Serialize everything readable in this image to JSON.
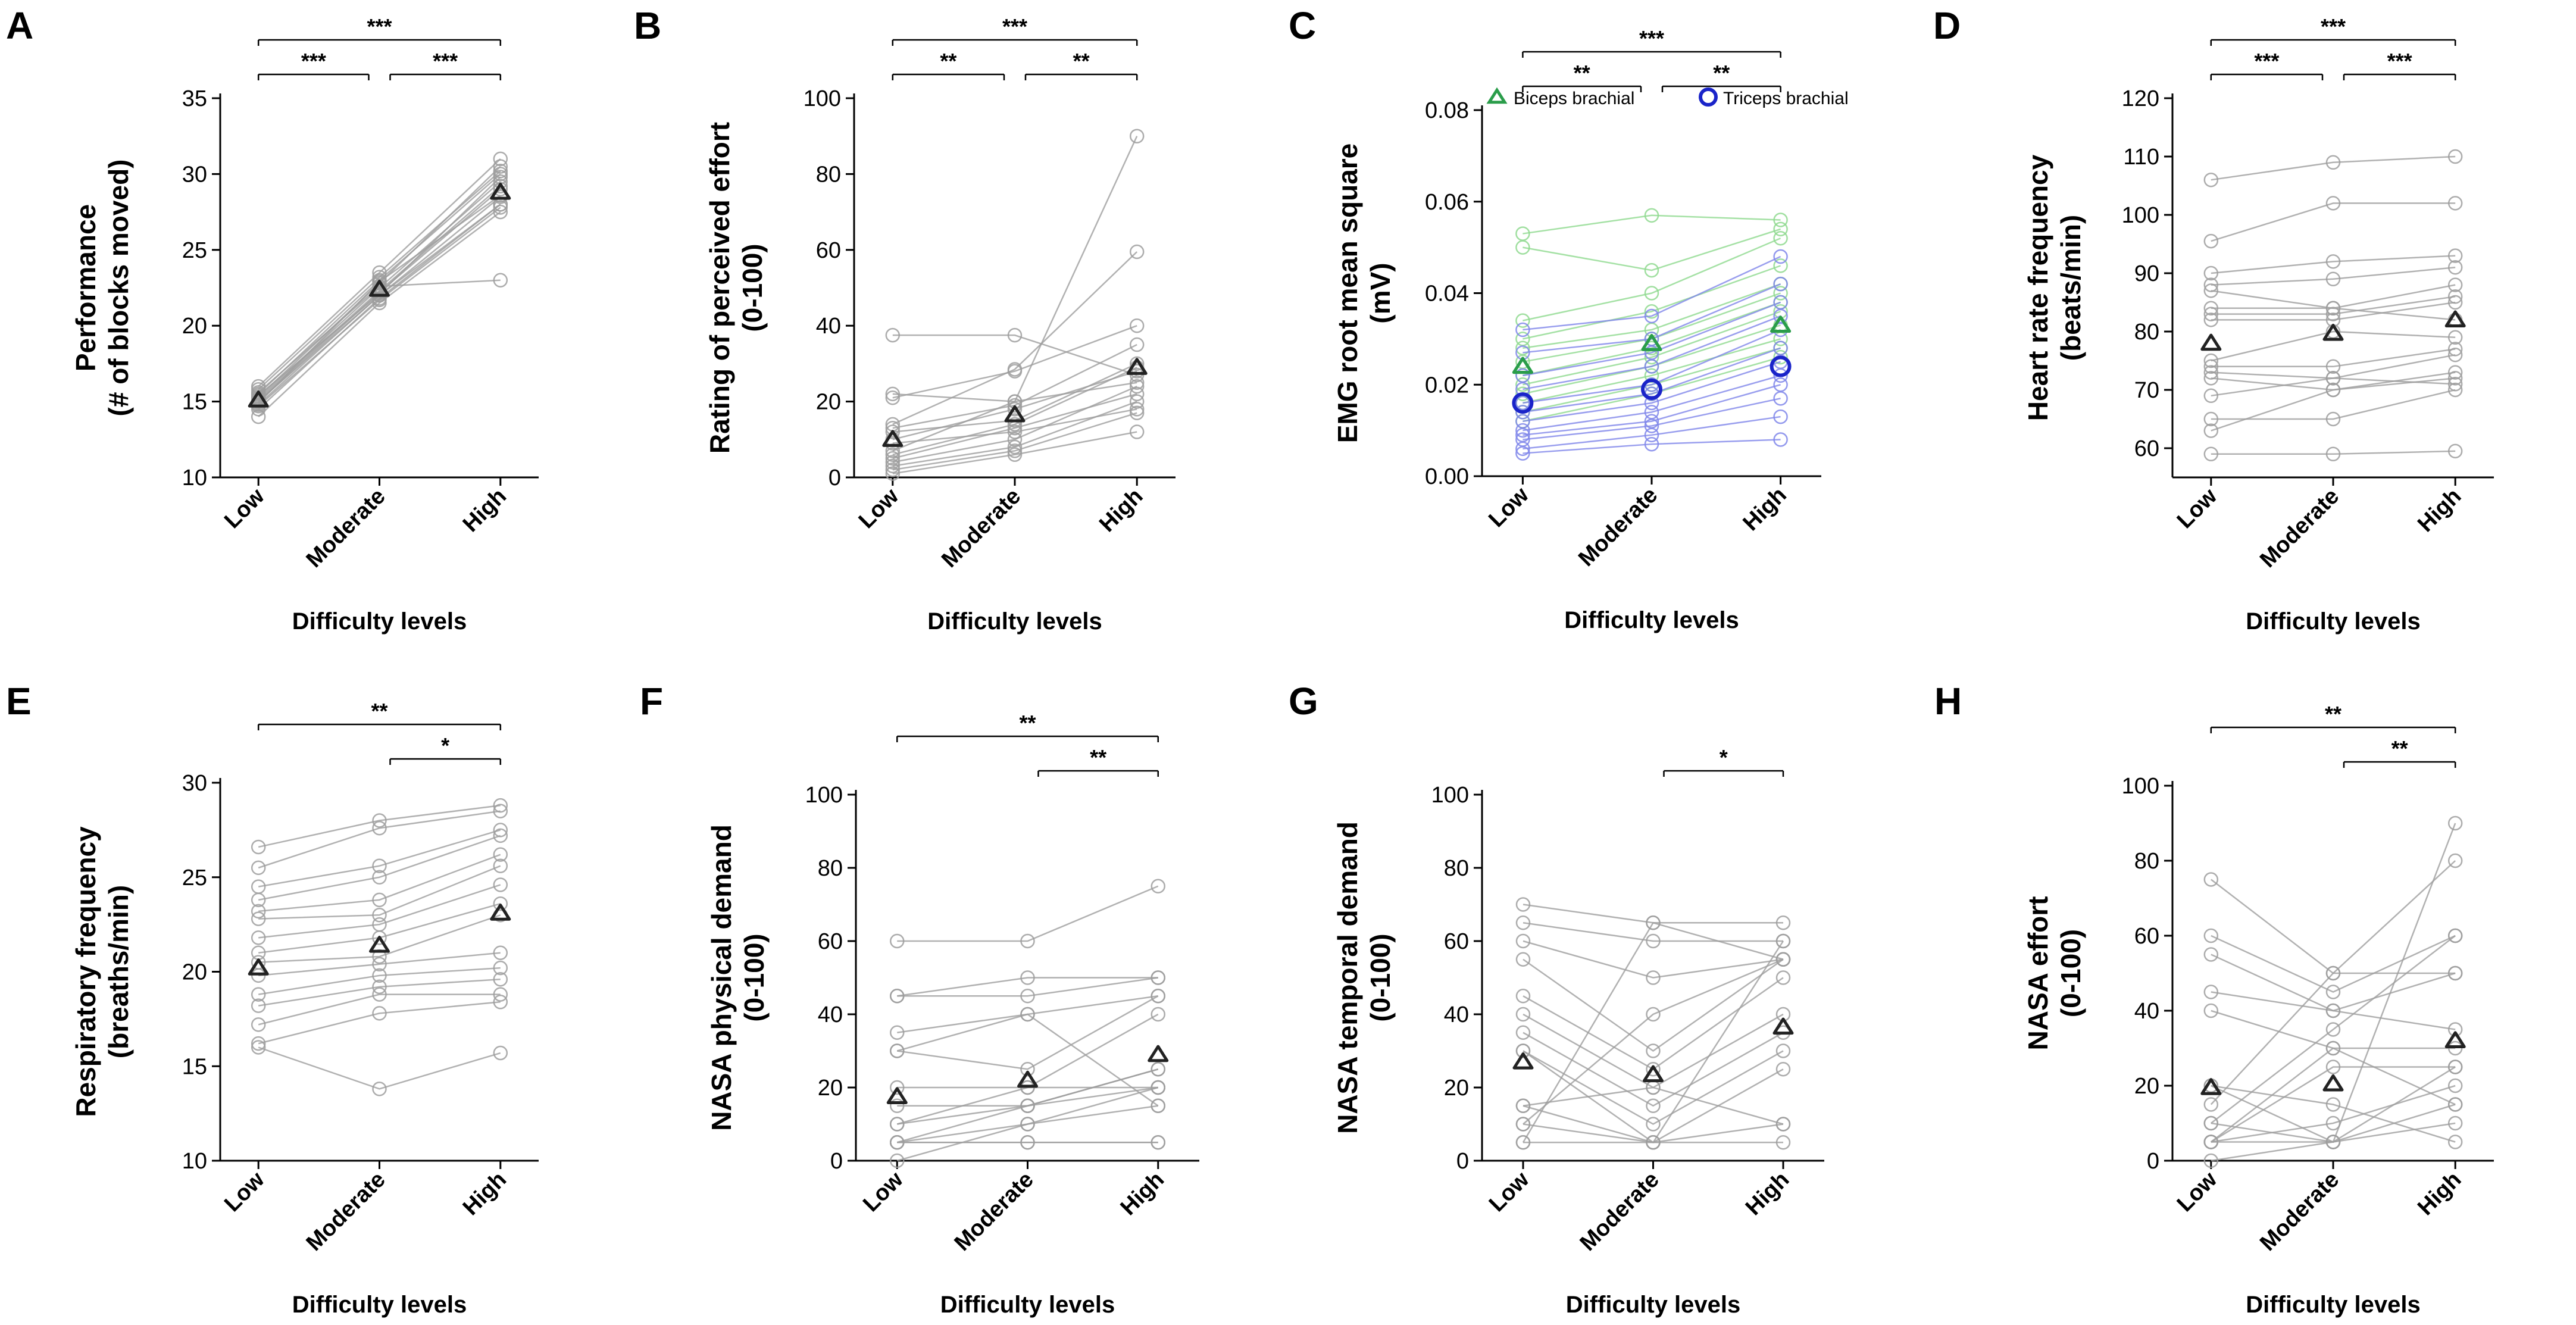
{
  "figure": {
    "colors": {
      "individual": "#9e9e9e",
      "mean_marker": "#222222",
      "biceps": "#2a9d4a",
      "biceps_light": "#8fd98f",
      "triceps": "#1a24c9",
      "triceps_light": "#7f86ea"
    }
  },
  "chart_data": [
    {
      "panel": "A",
      "type": "line",
      "ylabel": "Performance",
      "ylabel2": "(# of blocks moved)",
      "xlabel": "Difficulty levels",
      "categories": [
        "Low",
        "Moderate",
        "High"
      ],
      "ylim": [
        10,
        35
      ],
      "yticks": [
        "10",
        "15",
        "20",
        "25",
        "30",
        "35"
      ],
      "mean": [
        15.1,
        22.4,
        28.8
      ],
      "subjects": [
        [
          14.0,
          21.5,
          27.5
        ],
        [
          14.5,
          21.8,
          28.0
        ],
        [
          14.8,
          22.0,
          28.5
        ],
        [
          15.0,
          22.2,
          29.0
        ],
        [
          15.2,
          22.5,
          29.5
        ],
        [
          15.5,
          23.0,
          30.0
        ],
        [
          16.0,
          23.5,
          31.0
        ],
        [
          15.0,
          22.0,
          28.0
        ],
        [
          15.3,
          22.8,
          30.5
        ],
        [
          14.7,
          21.7,
          27.8
        ],
        [
          15.6,
          22.6,
          23.0
        ],
        [
          15.1,
          22.3,
          29.2
        ],
        [
          14.9,
          22.9,
          28.6
        ],
        [
          15.8,
          23.2,
          30.2
        ],
        [
          15.4,
          22.1,
          29.8
        ]
      ],
      "comparisons": [
        {
          "from": 0,
          "to": 1,
          "stars": "***",
          "level": 0
        },
        {
          "from": 1,
          "to": 2,
          "stars": "***",
          "level": 0
        },
        {
          "from": 0,
          "to": 2,
          "stars": "***",
          "level": 1
        }
      ]
    },
    {
      "panel": "B",
      "type": "line",
      "ylabel": "Rating of perceived effort",
      "ylabel2": "(0-100)",
      "xlabel": "Difficulty levels",
      "categories": [
        "Low",
        "Moderate",
        "High"
      ],
      "ylim": [
        0,
        100
      ],
      "yticks": [
        "0",
        "20",
        "40",
        "60",
        "80",
        "100"
      ],
      "mean": [
        10.0,
        16.5,
        29.0
      ],
      "subjects": [
        [
          37.5,
          37.5,
          27.0
        ],
        [
          22.0,
          20.0,
          90.0
        ],
        [
          21.0,
          28.0,
          40.0
        ],
        [
          14.0,
          28.5,
          59.5
        ],
        [
          13.0,
          19.0,
          35.0
        ],
        [
          12.0,
          15.0,
          30.0
        ],
        [
          10.0,
          18.0,
          28.0
        ],
        [
          7.0,
          20.0,
          25.0
        ],
        [
          5.0,
          13.0,
          22.0
        ],
        [
          3.0,
          8.0,
          20.0
        ],
        [
          2.0,
          7.0,
          17.0
        ],
        [
          1.0,
          6.0,
          12.0
        ],
        [
          4.0,
          10.0,
          24.0
        ],
        [
          6.0,
          14.0,
          29.0
        ],
        [
          9.0,
          12.0,
          18.0
        ]
      ],
      "comparisons": [
        {
          "from": 0,
          "to": 1,
          "stars": "**",
          "level": 0
        },
        {
          "from": 1,
          "to": 2,
          "stars": "**",
          "level": 0
        },
        {
          "from": 0,
          "to": 2,
          "stars": "***",
          "level": 1
        }
      ]
    },
    {
      "panel": "C",
      "type": "line",
      "ylabel": "EMG root mean square",
      "ylabel2": "(mV)",
      "xlabel": "Difficulty levels",
      "categories": [
        "Low",
        "Moderate",
        "High"
      ],
      "ylim": [
        0,
        0.08
      ],
      "yticks": [
        "0.00",
        "0.02",
        "0.04",
        "0.06",
        "0.08"
      ],
      "legend": [
        {
          "label": "Biceps brachial",
          "marker": "triangle"
        },
        {
          "label": "Triceps brachial",
          "marker": "circle"
        }
      ],
      "series": [
        {
          "name": "Biceps brachial",
          "mean": [
            0.024,
            0.029,
            0.033
          ],
          "subjects": [
            [
              0.053,
              0.057,
              0.056
            ],
            [
              0.05,
              0.045,
              0.054
            ],
            [
              0.034,
              0.04,
              0.052
            ],
            [
              0.03,
              0.036,
              0.046
            ],
            [
              0.028,
              0.032,
              0.042
            ],
            [
              0.025,
              0.03,
              0.04
            ],
            [
              0.022,
              0.028,
              0.038
            ],
            [
              0.02,
              0.026,
              0.036
            ],
            [
              0.018,
              0.024,
              0.033
            ],
            [
              0.016,
              0.022,
              0.03
            ],
            [
              0.014,
              0.02,
              0.028
            ],
            [
              0.012,
              0.018,
              0.026
            ]
          ]
        },
        {
          "name": "Triceps brachial",
          "mean": [
            0.016,
            0.019,
            0.024
          ],
          "subjects": [
            [
              0.032,
              0.035,
              0.048
            ],
            [
              0.027,
              0.03,
              0.042
            ],
            [
              0.022,
              0.027,
              0.038
            ],
            [
              0.019,
              0.024,
              0.035
            ],
            [
              0.016,
              0.02,
              0.032
            ],
            [
              0.014,
              0.018,
              0.028
            ],
            [
              0.012,
              0.016,
              0.025
            ],
            [
              0.01,
              0.014,
              0.022
            ],
            [
              0.009,
              0.012,
              0.02
            ],
            [
              0.008,
              0.011,
              0.017
            ],
            [
              0.006,
              0.009,
              0.013
            ],
            [
              0.005,
              0.007,
              0.008
            ]
          ]
        }
      ],
      "comparisons": [
        {
          "from": 0,
          "to": 1,
          "stars": "**",
          "level": 0
        },
        {
          "from": 1,
          "to": 2,
          "stars": "**",
          "level": 0
        },
        {
          "from": 0,
          "to": 2,
          "stars": "***",
          "level": 1
        }
      ]
    },
    {
      "panel": "D",
      "type": "line",
      "ylabel": "Heart rate frequency",
      "ylabel2": "(beats/min)",
      "xlabel": "Difficulty levels",
      "categories": [
        "Low",
        "Moderate",
        "High"
      ],
      "ylim": [
        55,
        120
      ],
      "yticks": [
        "60",
        "70",
        "80",
        "90",
        "100",
        "110",
        "120"
      ],
      "mean": [
        78.0,
        79.7,
        82.0
      ],
      "subjects": [
        [
          106.0,
          109.0,
          110.0
        ],
        [
          95.5,
          102.0,
          102.0
        ],
        [
          90.0,
          92.0,
          93.0
        ],
        [
          88.0,
          89.0,
          91.0
        ],
        [
          84.0,
          84.0,
          88.0
        ],
        [
          83.0,
          83.0,
          86.0
        ],
        [
          82.0,
          82.0,
          85.0
        ],
        [
          75.0,
          80.0,
          79.0
        ],
        [
          74.0,
          74.0,
          77.0
        ],
        [
          73.0,
          72.0,
          76.0
        ],
        [
          72.0,
          70.0,
          73.0
        ],
        [
          69.0,
          72.0,
          71.0
        ],
        [
          65.0,
          65.0,
          70.0
        ],
        [
          63.0,
          70.0,
          72.0
        ],
        [
          59.0,
          59.0,
          59.5
        ],
        [
          87.0,
          84.0,
          82.0
        ]
      ],
      "comparisons": [
        {
          "from": 0,
          "to": 1,
          "stars": "***",
          "level": 0
        },
        {
          "from": 1,
          "to": 2,
          "stars": "***",
          "level": 0
        },
        {
          "from": 0,
          "to": 2,
          "stars": "***",
          "level": 1
        }
      ]
    },
    {
      "panel": "E",
      "type": "line",
      "ylabel": "Respiratory frequency",
      "ylabel2": "(breaths/min)",
      "xlabel": "Difficulty levels",
      "categories": [
        "Low",
        "Moderate",
        "High"
      ],
      "ylim": [
        10,
        30
      ],
      "yticks": [
        "10",
        "15",
        "20",
        "25",
        "30"
      ],
      "mean": [
        20.2,
        21.4,
        23.1
      ],
      "subjects": [
        [
          26.6,
          28.0,
          28.8
        ],
        [
          25.5,
          27.6,
          28.5
        ],
        [
          24.5,
          25.6,
          27.5
        ],
        [
          23.8,
          25.0,
          27.2
        ],
        [
          23.2,
          23.8,
          26.2
        ],
        [
          22.8,
          23.0,
          25.6
        ],
        [
          21.8,
          22.5,
          24.6
        ],
        [
          21.0,
          21.8,
          23.6
        ],
        [
          20.5,
          20.8,
          23.0
        ],
        [
          19.8,
          20.4,
          21.0
        ],
        [
          18.8,
          19.8,
          20.2
        ],
        [
          18.2,
          19.2,
          19.6
        ],
        [
          17.2,
          18.8,
          18.8
        ],
        [
          16.2,
          17.8,
          18.4
        ],
        [
          16.0,
          13.8,
          15.7
        ]
      ],
      "comparisons": [
        {
          "from": 1,
          "to": 2,
          "stars": "*",
          "level": 0
        },
        {
          "from": 0,
          "to": 2,
          "stars": "**",
          "level": 1
        }
      ]
    },
    {
      "panel": "F",
      "type": "line",
      "ylabel": "NASA physical demand",
      "ylabel2": "(0-100)",
      "xlabel": "Difficulty levels",
      "categories": [
        "Low",
        "Moderate",
        "High"
      ],
      "ylim": [
        0,
        100
      ],
      "yticks": [
        "0",
        "20",
        "40",
        "60",
        "80",
        "100"
      ],
      "mean": [
        17.5,
        22.0,
        29.0
      ],
      "subjects": [
        [
          60.0,
          60.0,
          75.0
        ],
        [
          45.0,
          45.0,
          50.0
        ],
        [
          45.0,
          50.0,
          50.0
        ],
        [
          35.0,
          40.0,
          45.0
        ],
        [
          30.0,
          25.0,
          45.0
        ],
        [
          20.0,
          20.0,
          40.0
        ],
        [
          15.0,
          15.0,
          25.0
        ],
        [
          10.0,
          15.0,
          20.0
        ],
        [
          5.0,
          10.0,
          20.0
        ],
        [
          5.0,
          5.0,
          5.0
        ],
        [
          5.0,
          15.0,
          25.0
        ],
        [
          0.0,
          10.0,
          15.0
        ],
        [
          5.0,
          5.0,
          5.0
        ],
        [
          10.0,
          20.0,
          20.0
        ],
        [
          30.0,
          40.0,
          15.0
        ]
      ],
      "comparisons": [
        {
          "from": 1,
          "to": 2,
          "stars": "**",
          "level": 0
        },
        {
          "from": 0,
          "to": 2,
          "stars": "**",
          "level": 1
        }
      ]
    },
    {
      "panel": "G",
      "type": "line",
      "ylabel": "NASA temporal demand",
      "ylabel2": "(0-100)",
      "xlabel": "Difficulty levels",
      "categories": [
        "Low",
        "Moderate",
        "High"
      ],
      "ylim": [
        0,
        100
      ],
      "yticks": [
        "0",
        "20",
        "40",
        "60",
        "80",
        "100"
      ],
      "mean": [
        27.0,
        23.5,
        36.5
      ],
      "subjects": [
        [
          70.0,
          65.0,
          65.0
        ],
        [
          65.0,
          60.0,
          60.0
        ],
        [
          60.0,
          50.0,
          55.0
        ],
        [
          55.0,
          30.0,
          55.0
        ],
        [
          45.0,
          25.0,
          50.0
        ],
        [
          40.0,
          20.0,
          40.0
        ],
        [
          35.0,
          15.0,
          35.0
        ],
        [
          30.0,
          10.0,
          30.0
        ],
        [
          15.0,
          5.0,
          25.0
        ],
        [
          10.0,
          5.0,
          10.0
        ],
        [
          5.0,
          5.0,
          5.0
        ],
        [
          10.0,
          40.0,
          55.0
        ],
        [
          15.0,
          20.0,
          10.0
        ],
        [
          5.0,
          65.0,
          55.0
        ],
        [
          30.0,
          5.0,
          60.0
        ]
      ],
      "comparisons": [
        {
          "from": 1,
          "to": 2,
          "stars": "*",
          "level": 0
        }
      ]
    },
    {
      "panel": "H",
      "type": "line",
      "ylabel": "NASA effort",
      "ylabel2": "(0-100)",
      "xlabel": "Difficulty levels",
      "categories": [
        "Low",
        "Moderate",
        "High"
      ],
      "ylim": [
        0,
        100
      ],
      "yticks": [
        "0",
        "20",
        "40",
        "60",
        "80",
        "100"
      ],
      "mean": [
        19.5,
        20.5,
        32.0
      ],
      "subjects": [
        [
          75.0,
          50.0,
          50.0
        ],
        [
          60.0,
          45.0,
          60.0
        ],
        [
          55.0,
          40.0,
          50.0
        ],
        [
          45.0,
          40.0,
          35.0
        ],
        [
          40.0,
          30.0,
          30.0
        ],
        [
          20.0,
          5.0,
          90.0
        ],
        [
          15.0,
          50.0,
          80.0
        ],
        [
          10.0,
          35.0,
          60.0
        ],
        [
          5.0,
          25.0,
          25.0
        ],
        [
          5.0,
          10.0,
          20.0
        ],
        [
          5.0,
          5.0,
          15.0
        ],
        [
          0.0,
          5.0,
          10.0
        ],
        [
          20.0,
          15.0,
          5.0
        ],
        [
          10.0,
          5.0,
          25.0
        ],
        [
          5.0,
          30.0,
          15.0
        ]
      ],
      "comparisons": [
        {
          "from": 1,
          "to": 2,
          "stars": "**",
          "level": 0
        },
        {
          "from": 0,
          "to": 2,
          "stars": "**",
          "level": 1
        }
      ]
    }
  ]
}
